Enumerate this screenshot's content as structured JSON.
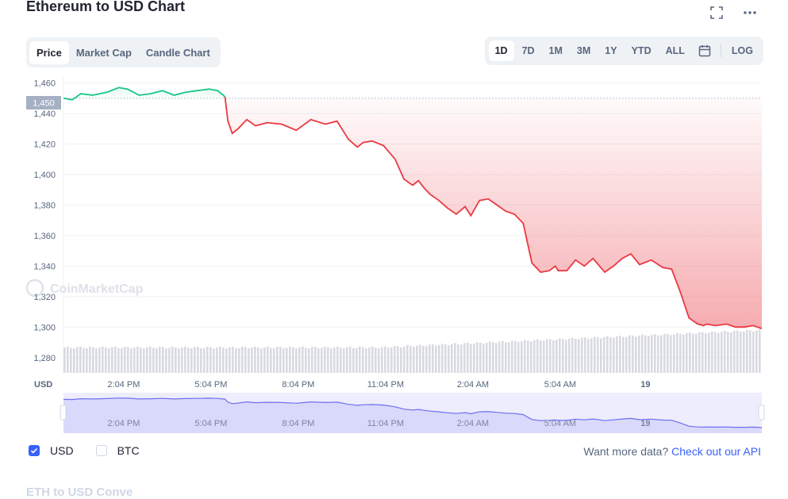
{
  "header": {
    "title": "Ethereum to USD Chart"
  },
  "icons": {
    "fullscreen": "fullscreen-icon",
    "more": "more-icon",
    "calendar": "calendar-icon",
    "check": "check-icon"
  },
  "tabs": [
    {
      "label": "Price",
      "active": true
    },
    {
      "label": "Market Cap",
      "active": false
    },
    {
      "label": "Candle Chart",
      "active": false
    }
  ],
  "ranges": [
    {
      "label": "1D",
      "active": true
    },
    {
      "label": "7D",
      "active": false
    },
    {
      "label": "1M",
      "active": false
    },
    {
      "label": "3M",
      "active": false
    },
    {
      "label": "1Y",
      "active": false
    },
    {
      "label": "YTD",
      "active": false
    },
    {
      "label": "ALL",
      "active": false
    }
  ],
  "log_label": "LOG",
  "watermark": "CoinMarketCap",
  "colors": {
    "up": "#16c784",
    "down": "#ea3943",
    "accent": "#3861fb",
    "navigator": "#6f6ff0"
  },
  "chart_data": {
    "type": "line",
    "ylabel": "USD",
    "ylim": [
      1270,
      1465
    ],
    "yticks": [
      "1,460",
      "1,440",
      "1,420",
      "1,400",
      "1,380",
      "1,360",
      "1,340",
      "1,320",
      "1,300",
      "1,280"
    ],
    "ytick_values": [
      1460,
      1440,
      1420,
      1400,
      1380,
      1360,
      1340,
      1320,
      1300,
      1280
    ],
    "xticks": [
      "2:04 PM",
      "5:04 PM",
      "8:04 PM",
      "11:04 PM",
      "2:04 AM",
      "5:04 AM",
      "19"
    ],
    "xtick_hours": [
      2.07,
      5.07,
      8.07,
      11.07,
      14.07,
      17.07,
      20.0
    ],
    "reference_price": 1450,
    "reference_label": "1,450",
    "price_hours": [
      0,
      0.3,
      0.6,
      1.0,
      1.5,
      1.9,
      2.2,
      2.6,
      3.0,
      3.4,
      3.8,
      4.2,
      4.6,
      5.0,
      5.3,
      5.55,
      5.65,
      5.8,
      6.0,
      6.3,
      6.6,
      7.0,
      7.5,
      8.0,
      8.5,
      9.0,
      9.4,
      9.8,
      10.1,
      10.3,
      10.6,
      11.0,
      11.4,
      11.7,
      12.0,
      12.2,
      12.4,
      12.6,
      12.9,
      13.2,
      13.5,
      13.8,
      14.0,
      14.3,
      14.6,
      14.9,
      15.2,
      15.5,
      15.8,
      16.1,
      16.4,
      16.7,
      16.9,
      17.0,
      17.3,
      17.6,
      17.9,
      18.2,
      18.6,
      18.9,
      19.2,
      19.5,
      19.8,
      20.2,
      20.6,
      20.9,
      21.2,
      21.5,
      21.8,
      22.0,
      22.1,
      22.4,
      22.8,
      23.1,
      23.4,
      23.7,
      24.0
    ],
    "price_values": [
      1450,
      1449,
      1453,
      1452,
      1454,
      1457,
      1456,
      1452,
      1453,
      1455,
      1452,
      1454,
      1455,
      1456,
      1455,
      1451,
      1435,
      1427,
      1430,
      1436,
      1432,
      1434,
      1433,
      1429,
      1436,
      1433,
      1435,
      1423,
      1418,
      1421,
      1422,
      1419,
      1410,
      1397,
      1393,
      1396,
      1391,
      1387,
      1383,
      1378,
      1374,
      1379,
      1373,
      1383,
      1384,
      1380,
      1376,
      1374,
      1368,
      1342,
      1336,
      1337,
      1340,
      1337,
      1337,
      1344,
      1340,
      1345,
      1336,
      1340,
      1345,
      1348,
      1341,
      1344,
      1339,
      1338,
      1323,
      1306,
      1302,
      1301,
      1302,
      1301,
      1302,
      1300,
      1300,
      1301,
      1299
    ],
    "xaxis": {
      "start_hour": 0,
      "end_hour": 24
    }
  },
  "navigator": {
    "xticks": [
      "2:04 PM",
      "5:04 PM",
      "8:04 PM",
      "11:04 PM",
      "2:04 AM",
      "5:04 AM",
      "19"
    ]
  },
  "legend": {
    "items": [
      {
        "label": "USD",
        "checked": true
      },
      {
        "label": "BTC",
        "checked": false
      }
    ]
  },
  "api": {
    "prompt": "Want more data?",
    "link": "Check out our API"
  },
  "cut_text": "ETH to USD Conve"
}
